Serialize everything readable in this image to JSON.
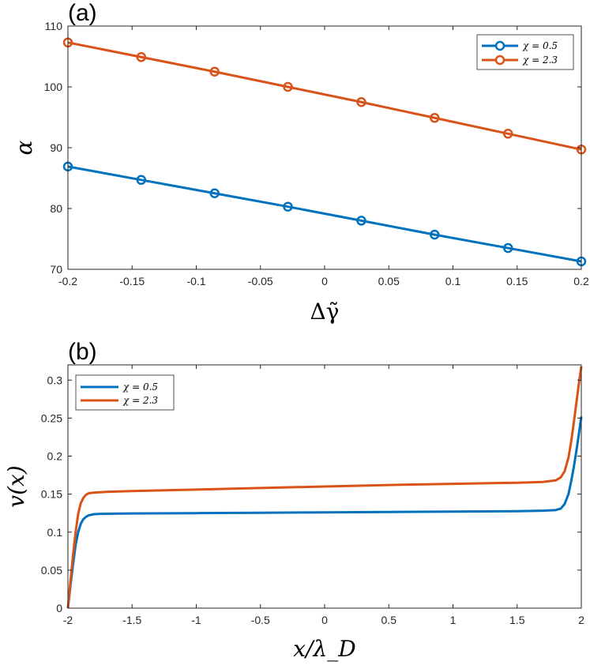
{
  "chart_data": [
    {
      "type": "line",
      "panel": "(a)",
      "xlabel": "Δγ̃",
      "ylabel": "α",
      "xlim": [
        -0.2,
        0.2
      ],
      "ylim": [
        70,
        110
      ],
      "xticks": [
        -0.2,
        -0.15,
        -0.1,
        -0.05,
        0,
        0.05,
        0.1,
        0.15,
        0.2
      ],
      "xtick_labels": [
        "-0.2",
        "-0.15",
        "-0.1",
        "-0.05",
        "0",
        "0.05",
        "0.1",
        "0.15",
        "0.2"
      ],
      "yticks": [
        70,
        80,
        90,
        100,
        110
      ],
      "ytick_labels": [
        "70",
        "80",
        "90",
        "100",
        "110"
      ],
      "legend_position": "top-right",
      "markers": true,
      "series": [
        {
          "name": "χ = 0.5",
          "color": "#0072BD",
          "x": [
            -0.2,
            -0.1429,
            -0.0857,
            -0.0286,
            0.0286,
            0.0857,
            0.1429,
            0.2
          ],
          "values": [
            86.9,
            84.7,
            82.5,
            80.3,
            78.0,
            75.7,
            73.5,
            71.3
          ]
        },
        {
          "name": "χ = 2.3",
          "color": "#D95319",
          "x": [
            -0.2,
            -0.1429,
            -0.0857,
            -0.0286,
            0.0286,
            0.0857,
            0.1429,
            0.2
          ],
          "values": [
            107.3,
            104.9,
            102.5,
            100.0,
            97.5,
            94.9,
            92.3,
            89.7
          ]
        }
      ]
    },
    {
      "type": "line",
      "panel": "(b)",
      "xlabel": "x/λ_D",
      "ylabel": "v(x)",
      "xlim": [
        -2,
        2
      ],
      "ylim": [
        0,
        0.32
      ],
      "xticks": [
        -2,
        -1.5,
        -1,
        -0.5,
        0,
        0.5,
        1,
        1.5,
        2
      ],
      "xtick_labels": [
        "-2",
        "-1.5",
        "-1",
        "-0.5",
        "0",
        "0.5",
        "1",
        "1.5",
        "2"
      ],
      "yticks": [
        0,
        0.05,
        0.1,
        0.15,
        0.2,
        0.25,
        0.3
      ],
      "ytick_labels": [
        "0",
        "0.05",
        "0.1",
        "0.15",
        "0.2",
        "0.25",
        "0.3"
      ],
      "legend_position": "top-left",
      "markers": false,
      "series": [
        {
          "name": "χ = 0.5",
          "color": "#0072BD",
          "x": [
            -2.0,
            -1.98,
            -1.96,
            -1.94,
            -1.92,
            -1.9,
            -1.88,
            -1.86,
            -1.84,
            -1.8,
            -1.75,
            -1.7,
            -1.5,
            -1.0,
            -0.5,
            0,
            0.5,
            1.0,
            1.5,
            1.7,
            1.8,
            1.84,
            1.87,
            1.9,
            1.92,
            1.94,
            1.96,
            1.98,
            2.0
          ],
          "values": [
            0.0,
            0.03,
            0.058,
            0.083,
            0.1,
            0.111,
            0.117,
            0.12,
            0.122,
            0.1235,
            0.124,
            0.1242,
            0.1245,
            0.125,
            0.1255,
            0.126,
            0.1265,
            0.127,
            0.1275,
            0.1282,
            0.129,
            0.131,
            0.137,
            0.15,
            0.166,
            0.184,
            0.205,
            0.228,
            0.252
          ]
        },
        {
          "name": "χ = 2.3",
          "color": "#D95319",
          "x": [
            -2.0,
            -1.98,
            -1.96,
            -1.94,
            -1.92,
            -1.9,
            -1.88,
            -1.86,
            -1.84,
            -1.8,
            -1.75,
            -1.7,
            -1.5,
            -1.0,
            -0.5,
            0,
            0.5,
            1.0,
            1.5,
            1.7,
            1.8,
            1.84,
            1.87,
            1.9,
            1.92,
            1.94,
            1.96,
            1.98,
            2.0
          ],
          "values": [
            0.0,
            0.036,
            0.07,
            0.1,
            0.124,
            0.138,
            0.145,
            0.149,
            0.151,
            0.152,
            0.1525,
            0.153,
            0.154,
            0.156,
            0.158,
            0.16,
            0.162,
            0.1635,
            0.165,
            0.166,
            0.168,
            0.172,
            0.18,
            0.198,
            0.218,
            0.242,
            0.268,
            0.294,
            0.318
          ]
        }
      ]
    }
  ]
}
